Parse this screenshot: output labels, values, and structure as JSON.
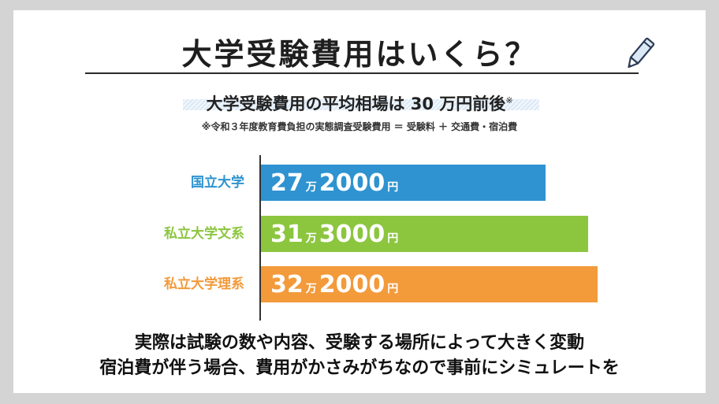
{
  "title": "大学受験費用はいくら？",
  "subtitle": "大学受験費用の平均相場は 30 万円前後",
  "subtitle_mark": "※",
  "note": "※令和３年度教育費負担の実態調査受験費用 ＝ 受験料 ＋ 交通費・宿泊費",
  "icons": [
    "pencil-icon"
  ],
  "chart_data": {
    "type": "bar",
    "orientation": "horizontal",
    "categories": [
      "国立大学",
      "私立大学文系",
      "私立大学理系"
    ],
    "values": [
      272000,
      313000,
      322000
    ],
    "colors": [
      "#2e93d0",
      "#8cc63f",
      "#f39a3b"
    ],
    "labels": [
      {
        "man": "27",
        "man_unit": "万",
        "rest": "2000",
        "yen": "円"
      },
      {
        "man": "31",
        "man_unit": "万",
        "rest": "3000",
        "yen": "円"
      },
      {
        "man": "32",
        "man_unit": "万",
        "rest": "2000",
        "yen": "円"
      }
    ],
    "xlim": [
      0,
      350000
    ],
    "grid": false,
    "legend": "none"
  },
  "bottom_text": [
    "実際は試験の数や内容、受験する場所によって大きく変動",
    "宿泊費が伴う場合、費用がかさみがちなので事前にシミュレートを"
  ]
}
